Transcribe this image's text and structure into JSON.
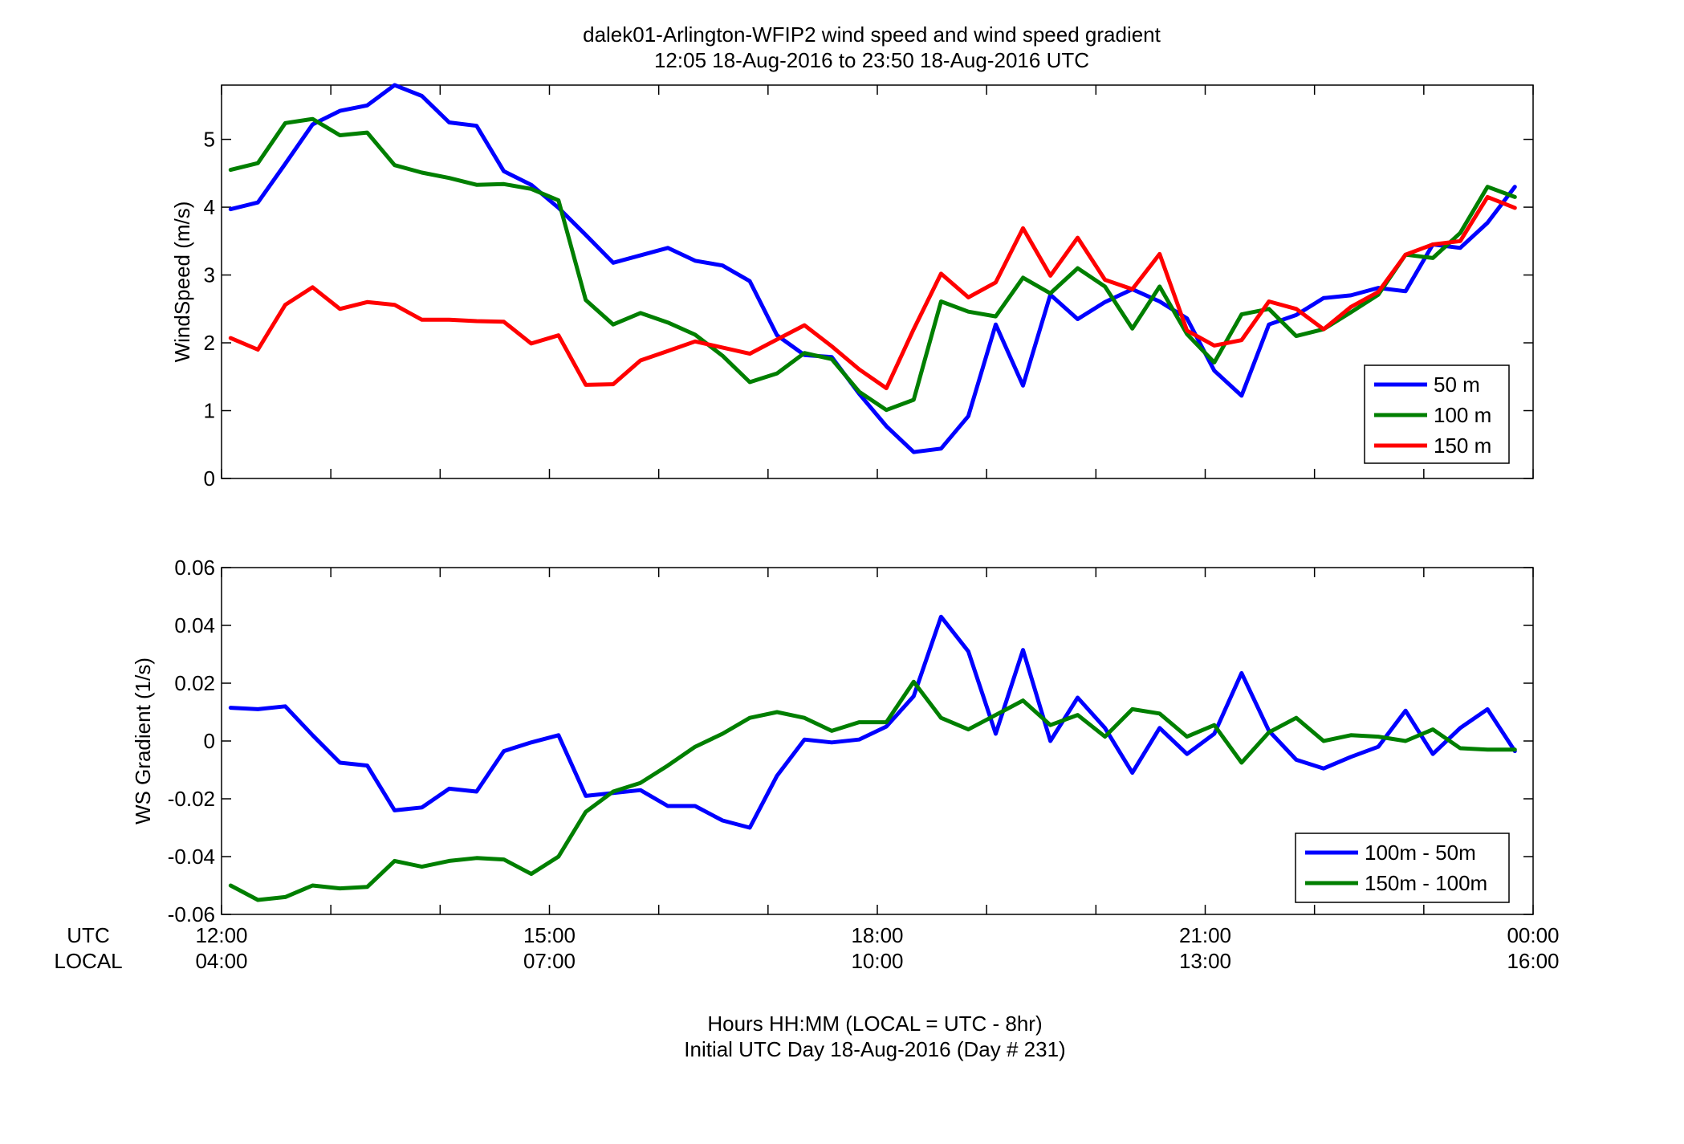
{
  "title": {
    "line1": "dalek01-Arlington-WFIP2  wind speed and wind speed gradient",
    "line2": "12:05 18-Aug-2016 to 23:50 18-Aug-2016  UTC"
  },
  "xaxis": {
    "row_label_utc": "UTC",
    "row_label_local": "LOCAL",
    "ticks_utc": [
      "12:00",
      "15:00",
      "18:00",
      "21:00",
      "00:00"
    ],
    "ticks_local": [
      "04:00",
      "07:00",
      "10:00",
      "13:00",
      "16:00"
    ],
    "footer_line1": "Hours HH:MM  (LOCAL = UTC - 8hr)",
    "footer_line2": "Initial UTC Day 18-Aug-2016 (Day # 231)"
  },
  "colors": {
    "blue": "#0000ff",
    "green": "#007f00",
    "red": "#ff0000"
  },
  "chart_data": [
    {
      "type": "line",
      "ylabel": "WindSpeed (m/s)",
      "xlim": [
        12,
        24
      ],
      "ylim": [
        0,
        5.8
      ],
      "yticks": [
        0,
        1,
        2,
        3,
        4,
        5
      ],
      "legend": "bottom-right",
      "x": [
        12.083,
        12.333,
        12.583,
        12.833,
        13.083,
        13.333,
        13.583,
        13.833,
        14.083,
        14.333,
        14.583,
        14.833,
        15.083,
        15.333,
        15.583,
        15.833,
        16.083,
        16.333,
        16.583,
        16.833,
        17.083,
        17.333,
        17.583,
        17.833,
        18.083,
        18.333,
        18.583,
        18.833,
        19.083,
        19.333,
        19.583,
        19.833,
        20.083,
        20.333,
        20.583,
        20.833,
        21.083,
        21.333,
        21.583,
        21.833,
        22.083,
        22.333,
        22.583,
        22.833,
        23.083,
        23.333,
        23.583,
        23.833
      ],
      "series": [
        {
          "name": "50 m",
          "color": "#0000ff",
          "values": [
            3.97,
            4.07,
            4.64,
            5.22,
            5.42,
            5.5,
            5.8,
            5.64,
            5.25,
            5.2,
            4.53,
            4.33,
            3.99,
            3.59,
            3.18,
            3.29,
            3.4,
            3.21,
            3.14,
            2.91,
            2.11,
            1.82,
            1.79,
            1.25,
            0.77,
            0.39,
            0.44,
            0.92,
            2.27,
            1.37,
            2.71,
            2.35,
            2.6,
            2.79,
            2.61,
            2.36,
            1.59,
            1.22,
            2.27,
            2.41,
            2.66,
            2.7,
            2.81,
            2.76,
            3.45,
            3.4,
            3.77,
            4.3
          ]
        },
        {
          "name": "100 m",
          "color": "#007f00",
          "values": [
            4.55,
            4.65,
            5.24,
            5.3,
            5.06,
            5.1,
            4.62,
            4.51,
            4.43,
            4.33,
            4.34,
            4.27,
            4.1,
            2.63,
            2.27,
            2.44,
            2.3,
            2.12,
            1.81,
            1.42,
            1.55,
            1.85,
            1.76,
            1.28,
            1.01,
            1.16,
            2.61,
            2.46,
            2.39,
            2.96,
            2.73,
            3.1,
            2.83,
            2.21,
            2.83,
            2.13,
            1.71,
            2.42,
            2.5,
            2.1,
            2.2,
            2.45,
            2.71,
            3.3,
            3.25,
            3.62,
            4.3,
            4.15
          ]
        },
        {
          "name": "150 m",
          "color": "#ff0000",
          "values": [
            2.07,
            1.9,
            2.56,
            2.82,
            2.5,
            2.6,
            2.56,
            2.34,
            2.34,
            2.32,
            2.31,
            1.99,
            2.11,
            1.38,
            1.39,
            1.74,
            1.88,
            2.02,
            1.93,
            1.84,
            2.05,
            2.26,
            1.95,
            1.61,
            1.33,
            2.2,
            3.02,
            2.67,
            2.89,
            3.69,
            2.99,
            3.55,
            2.93,
            2.79,
            3.31,
            2.18,
            1.96,
            2.04,
            2.61,
            2.5,
            2.2,
            2.53,
            2.75,
            3.3,
            3.45,
            3.5,
            4.15,
            3.99
          ]
        }
      ]
    },
    {
      "type": "line",
      "ylabel": "WS Gradient (1/s)",
      "xlim": [
        12,
        24
      ],
      "ylim": [
        -0.06,
        0.06
      ],
      "yticks": [
        -0.06,
        -0.04,
        -0.02,
        0,
        0.02,
        0.04,
        0.06
      ],
      "ytick_labels": [
        "-0.06",
        "-0.04",
        "-0.02",
        "0",
        "0.02",
        "0.04",
        "0.06"
      ],
      "legend": "bottom-right",
      "x": [
        12.083,
        12.333,
        12.583,
        12.833,
        13.083,
        13.333,
        13.583,
        13.833,
        14.083,
        14.333,
        14.583,
        14.833,
        15.083,
        15.333,
        15.583,
        15.833,
        16.083,
        16.333,
        16.583,
        16.833,
        17.083,
        17.333,
        17.583,
        17.833,
        18.083,
        18.333,
        18.583,
        18.833,
        19.083,
        19.333,
        19.583,
        19.833,
        20.083,
        20.333,
        20.583,
        20.833,
        21.083,
        21.333,
        21.583,
        21.833,
        22.083,
        22.333,
        22.583,
        22.833,
        23.083,
        23.333,
        23.583,
        23.833
      ],
      "series": [
        {
          "name": "100m - 50m",
          "color": "#0000ff",
          "values": [
            0.0115,
            0.011,
            0.012,
            0.002,
            -0.0075,
            -0.0085,
            -0.024,
            -0.023,
            -0.0165,
            -0.0175,
            -0.0035,
            -0.0005,
            0.002,
            -0.019,
            -0.018,
            -0.017,
            -0.0225,
            -0.0225,
            -0.0275,
            -0.03,
            -0.012,
            0.0005,
            -0.0005,
            0.0005,
            0.005,
            0.0155,
            0.043,
            0.031,
            0.0025,
            0.0315,
            0.0,
            0.015,
            0.0045,
            -0.011,
            0.0045,
            -0.0045,
            0.0025,
            0.0235,
            0.0035,
            -0.0065,
            -0.0095,
            -0.0055,
            -0.002,
            0.0105,
            -0.0045,
            0.0045,
            0.011,
            -0.0035
          ]
        },
        {
          "name": "150m - 100m",
          "color": "#007f00",
          "values": [
            -0.05,
            -0.055,
            -0.054,
            -0.05,
            -0.051,
            -0.0505,
            -0.0415,
            -0.0435,
            -0.0415,
            -0.0405,
            -0.041,
            -0.046,
            -0.04,
            -0.0245,
            -0.0175,
            -0.0145,
            -0.0085,
            -0.002,
            0.0025,
            0.008,
            0.01,
            0.008,
            0.0035,
            0.0065,
            0.0065,
            0.0205,
            0.008,
            0.004,
            0.009,
            0.014,
            0.0055,
            0.009,
            0.0015,
            0.011,
            0.0095,
            0.0015,
            0.0055,
            -0.0075,
            0.003,
            0.008,
            0.0,
            0.002,
            0.0015,
            0.0,
            0.004,
            -0.0025,
            -0.003,
            -0.003
          ]
        }
      ]
    }
  ]
}
